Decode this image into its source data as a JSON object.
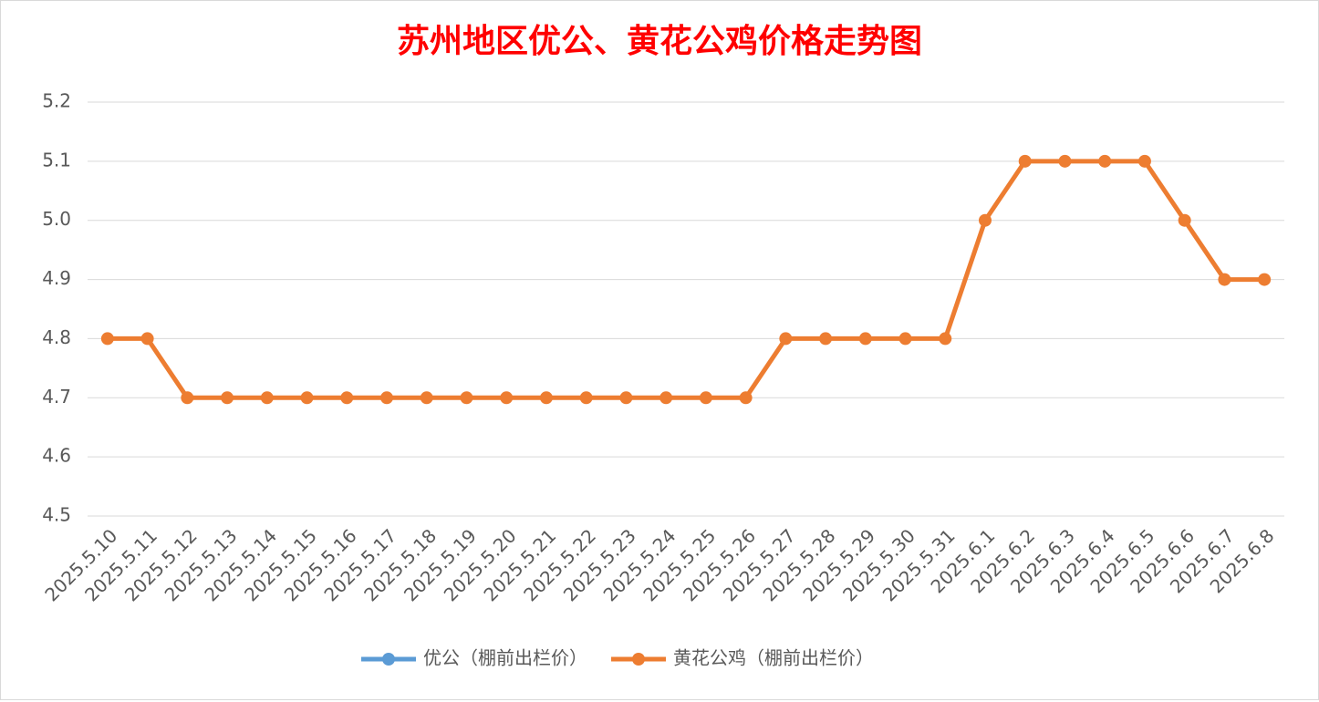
{
  "chart_data": {
    "type": "line",
    "title": "苏州地区优公、黄花公鸡价格走势图",
    "categories": [
      "2025.5.10",
      "2025.5.11",
      "2025.5.12",
      "2025.5.13",
      "2025.5.14",
      "2025.5.15",
      "2025.5.16",
      "2025.5.17",
      "2025.5.18",
      "2025.5.19",
      "2025.5.20",
      "2025.5.21",
      "2025.5.22",
      "2025.5.23",
      "2025.5.24",
      "2025.5.25",
      "2025.5.26",
      "2025.5.27",
      "2025.5.28",
      "2025.5.29",
      "2025.5.30",
      "2025.5.31",
      "2025.6.1",
      "2025.6.2",
      "2025.6.3",
      "2025.6.4",
      "2025.6.5",
      "2025.6.6",
      "2025.6.7",
      "2025.6.8"
    ],
    "series": [
      {
        "name": "优公（棚前出栏价）",
        "color": "#5b9bd5",
        "values": [
          null,
          null,
          null,
          null,
          null,
          null,
          null,
          null,
          null,
          null,
          null,
          null,
          null,
          null,
          null,
          null,
          null,
          null,
          null,
          null,
          null,
          null,
          null,
          null,
          null,
          null,
          null,
          null,
          null,
          null
        ]
      },
      {
        "name": "黄花公鸡（棚前出栏价）",
        "color": "#ed7d31",
        "values": [
          4.8,
          4.8,
          4.7,
          4.7,
          4.7,
          4.7,
          4.7,
          4.7,
          4.7,
          4.7,
          4.7,
          4.7,
          4.7,
          4.7,
          4.7,
          4.7,
          4.7,
          4.8,
          4.8,
          4.8,
          4.8,
          4.8,
          5.0,
          5.1,
          5.1,
          5.1,
          5.1,
          5.0,
          4.9,
          4.9
        ]
      }
    ],
    "ylim": [
      4.5,
      5.2
    ],
    "yticks": [
      4.5,
      4.6,
      4.7,
      4.8,
      4.9,
      {
        "value": 5,
        "label": "5.0"
      },
      5.1,
      5.2
    ],
    "grid": true,
    "legend": "bottom"
  }
}
